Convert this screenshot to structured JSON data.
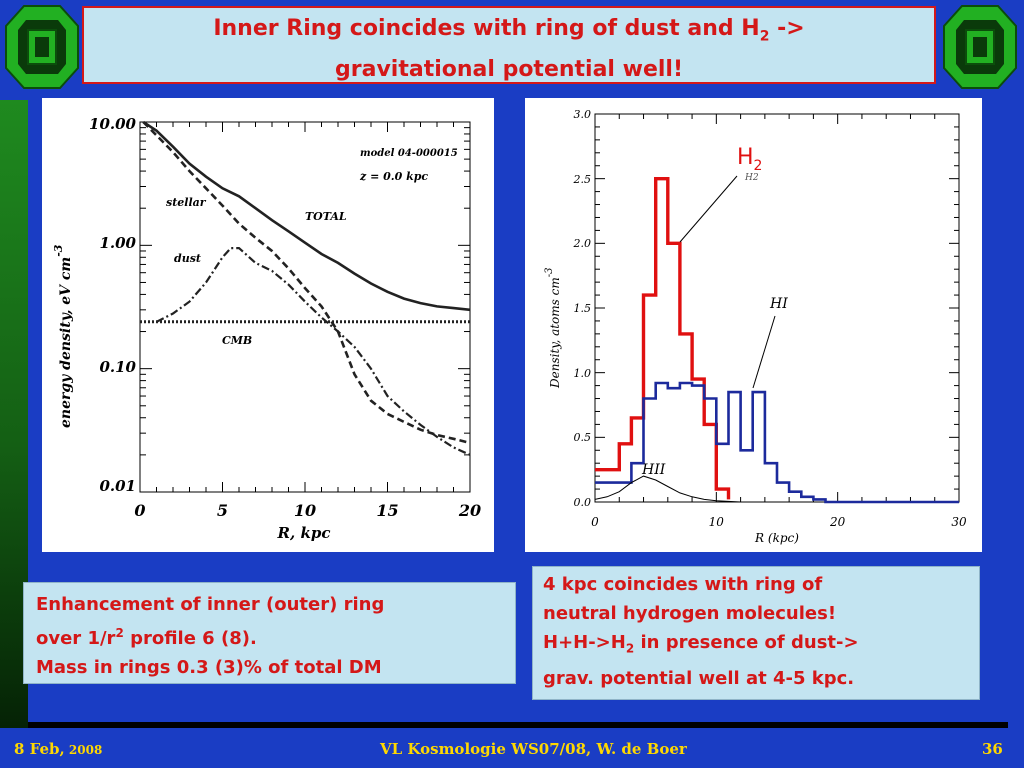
{
  "header": {
    "title_part1": "Inner Ring coincides with ring of dust and H",
    "title_sub": "2",
    "title_part2": " ->",
    "title_line2": "gravitational potential well!"
  },
  "colors": {
    "background": "#1a3dc4",
    "title_text": "#d41818",
    "box_fill": "#c3e4f1",
    "footer_text": "#ffd800",
    "h2_curve": "#e01010",
    "hi_curve": "#1c2a9c",
    "logo_green": "#22b022"
  },
  "logos": [
    "university-logo-left-icon",
    "university-logo-right-icon"
  ],
  "left_chart": {
    "chart_data": {
      "type": "line",
      "y_scale": "log",
      "xlim": [
        0,
        20
      ],
      "ylim": [
        0.01,
        10
      ],
      "x_ticks": [
        "0",
        "5",
        "10",
        "15",
        "20"
      ],
      "y_ticks": [
        "10.00",
        "1.00",
        "0.10",
        "0.01"
      ],
      "xlabel": "R, kpc",
      "ylabel": "energy density, eV cm",
      "ylabel_sup": "-3",
      "annotations": {
        "model": "model 04-000015",
        "z": "z =  0.0 kpc",
        "stellar": "stellar",
        "total": "TOTAL",
        "dust": "dust",
        "cmb": "CMB"
      },
      "series": [
        {
          "name": "TOTAL",
          "style": "solid",
          "x": [
            0.2,
            1,
            2,
            3,
            4,
            5,
            6,
            7,
            8,
            9,
            10,
            11,
            12,
            13,
            14,
            15,
            16,
            17,
            18,
            19,
            20
          ],
          "y": [
            10,
            8.5,
            6.3,
            4.6,
            3.6,
            2.9,
            2.5,
            2.0,
            1.6,
            1.3,
            1.05,
            0.85,
            0.72,
            0.59,
            0.49,
            0.42,
            0.37,
            0.34,
            0.32,
            0.31,
            0.3
          ]
        },
        {
          "name": "stellar",
          "style": "dashed",
          "x": [
            0.2,
            1,
            2,
            3,
            4,
            5,
            6,
            7,
            8,
            9,
            10,
            11,
            12,
            13,
            14,
            15,
            16,
            17,
            18,
            19,
            20
          ],
          "y": [
            10,
            7.8,
            5.7,
            4.0,
            2.9,
            2.1,
            1.5,
            1.15,
            0.9,
            0.65,
            0.45,
            0.32,
            0.2,
            0.09,
            0.055,
            0.043,
            0.037,
            0.032,
            0.029,
            0.027,
            0.025
          ]
        },
        {
          "name": "dust",
          "style": "dashdot",
          "x": [
            1,
            2,
            3,
            4,
            5,
            5.5,
            6,
            7,
            8,
            9,
            10,
            11,
            12,
            13,
            14,
            15,
            16,
            17,
            18,
            19,
            20
          ],
          "y": [
            0.24,
            0.28,
            0.35,
            0.5,
            0.8,
            0.95,
            0.95,
            0.72,
            0.62,
            0.48,
            0.35,
            0.26,
            0.2,
            0.15,
            0.1,
            0.06,
            0.045,
            0.035,
            0.028,
            0.023,
            0.02
          ]
        },
        {
          "name": "CMB",
          "style": "dotted",
          "x": [
            0,
            20
          ],
          "y": [
            0.24,
            0.24
          ]
        }
      ]
    }
  },
  "right_chart": {
    "chart_data": {
      "type": "line",
      "xlim": [
        0,
        30
      ],
      "ylim": [
        0,
        3.0
      ],
      "x_ticks": [
        "0",
        "10",
        "20",
        "30"
      ],
      "y_ticks": [
        "0.0",
        "0.5",
        "1.0",
        "1.5",
        "2.0",
        "2.5",
        "3.0"
      ],
      "xlabel": "R (kpc)",
      "ylabel": "Density, atoms cm",
      "ylabel_sup": "-3",
      "annotations": {
        "h2_label": "H",
        "h2_sub": "2",
        "h2_small": "H2",
        "hi_label": "HI",
        "hii_label": "HII"
      },
      "series": [
        {
          "name": "H2",
          "style": "step",
          "x": [
            0,
            2,
            3,
            4,
            5,
            6,
            7,
            8,
            9,
            10,
            11
          ],
          "y": [
            0.25,
            0.45,
            0.65,
            1.6,
            2.5,
            2.0,
            1.3,
            0.95,
            0.6,
            0.1,
            0.02
          ]
        },
        {
          "name": "HI",
          "style": "step",
          "x": [
            0,
            3,
            4,
            5,
            6,
            7,
            8,
            9,
            10,
            11,
            12,
            13,
            14,
            15,
            16,
            17,
            18,
            19,
            30
          ],
          "y": [
            0.15,
            0.3,
            0.8,
            0.92,
            0.88,
            0.92,
            0.9,
            0.8,
            0.45,
            0.85,
            0.4,
            0.85,
            0.3,
            0.15,
            0.08,
            0.04,
            0.02,
            0.0,
            0.0
          ]
        },
        {
          "name": "HII",
          "style": "thin",
          "x": [
            0,
            1,
            2,
            3,
            4,
            5,
            6,
            7,
            8,
            9,
            10,
            12
          ],
          "y": [
            0.02,
            0.04,
            0.08,
            0.15,
            0.2,
            0.17,
            0.12,
            0.07,
            0.04,
            0.02,
            0.01,
            0.0
          ]
        }
      ]
    }
  },
  "notes": {
    "left_line1": "Enhancement of inner (outer) ring",
    "left_line2_a": "over 1/r",
    "left_line2_sup": "2",
    "left_line2_b": " profile 6 (8).",
    "left_line3": "Mass in rings 0.3 (3)% of total DM",
    "right_line1": "4 kpc coincides with ring of",
    "right_line2": "neutral hydrogen molecules!",
    "right_line3_a": "H+H->H",
    "right_line3_sub": "2",
    "right_line3_b": "  in presence of dust->",
    "right_line4": "grav. potential well at 4-5 kpc."
  },
  "footer": {
    "date_a": "8 Feb,",
    "date_b": " 2008",
    "course": "VL Kosmologie WS07/08,  W. de Boer",
    "page": "36"
  }
}
